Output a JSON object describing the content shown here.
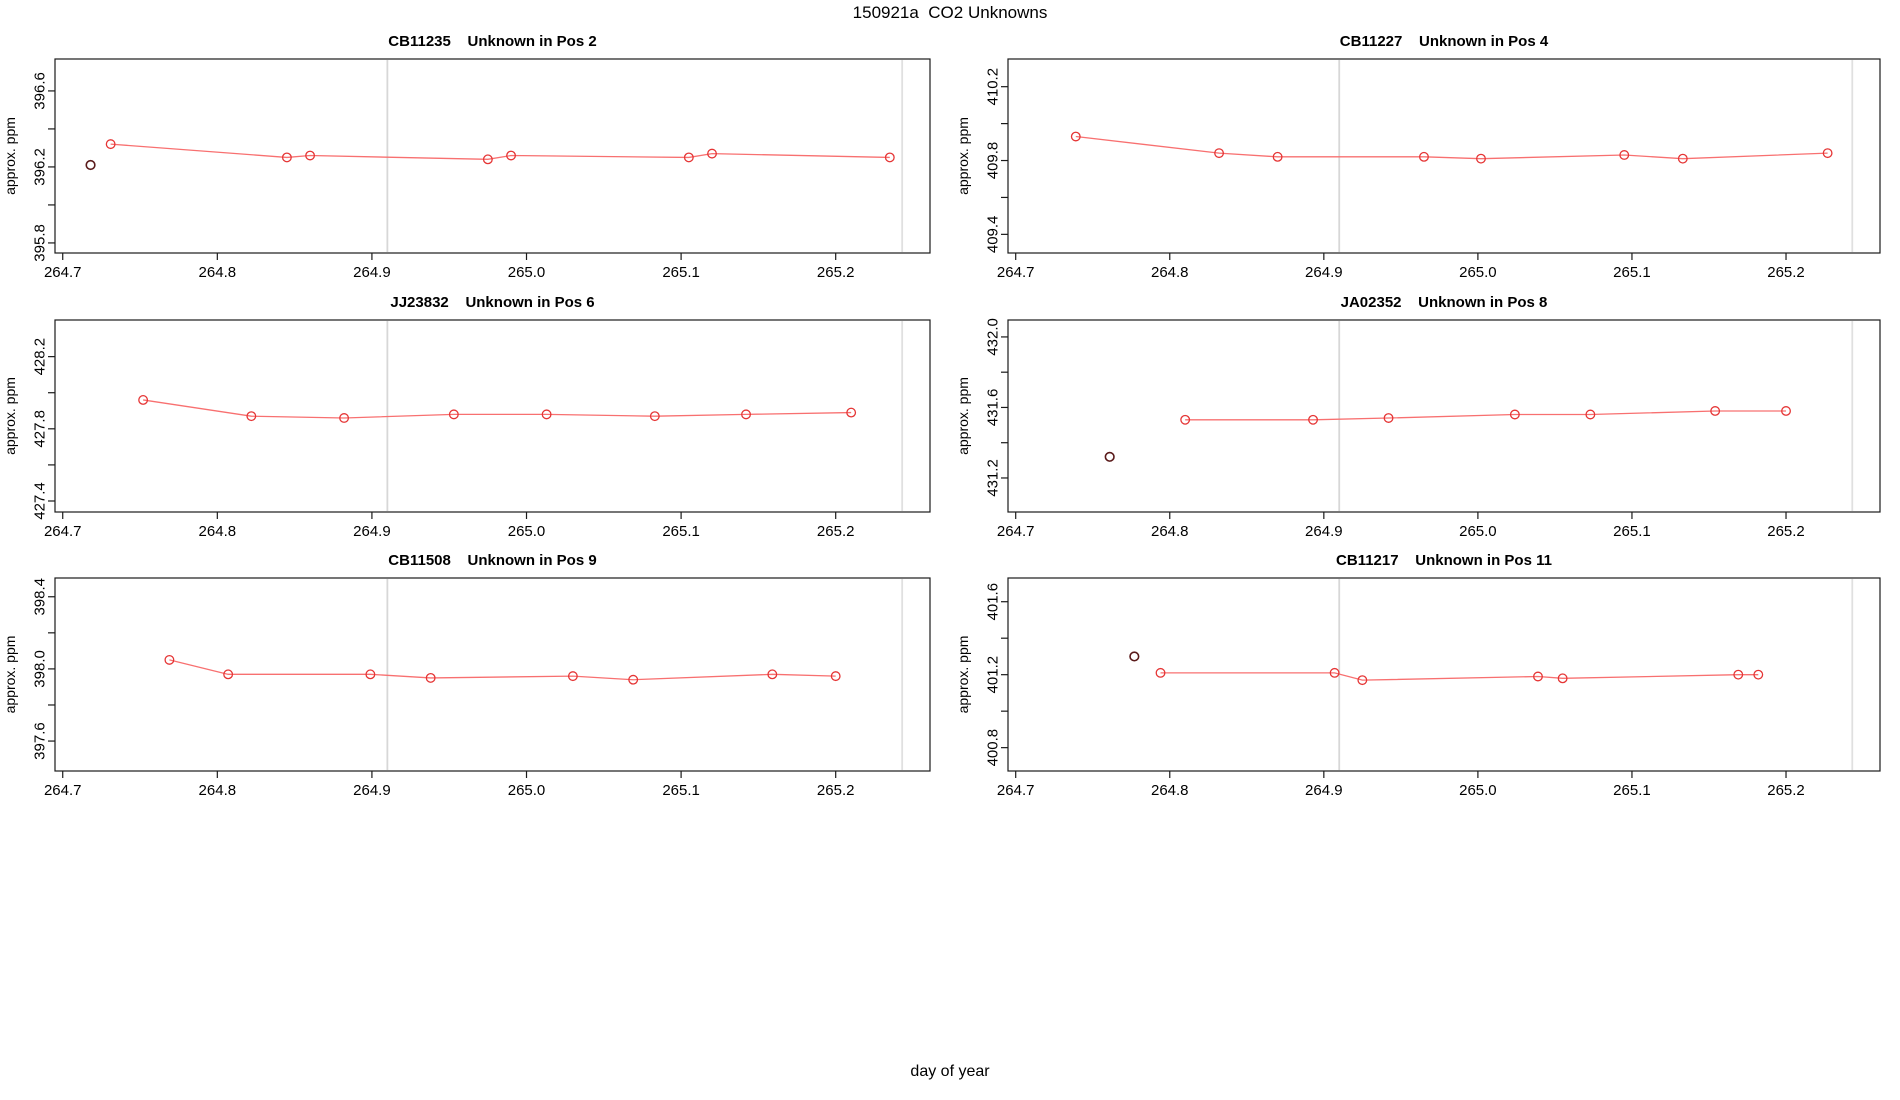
{
  "chart_data": {
    "type": "line",
    "title": "150921a  CO2 Unknowns",
    "xlabel": "day of year",
    "ylabel": "approx. ppm",
    "xlim": [
      264.695,
      265.261
    ],
    "x_ticks": [
      {
        "v": 264.7,
        "label": "264.7"
      },
      {
        "v": 264.8,
        "label": "264.8"
      },
      {
        "v": 264.9,
        "label": "264.9"
      },
      {
        "v": 265.0,
        "label": "265.0"
      },
      {
        "v": 265.1,
        "label": "265.1"
      },
      {
        "v": 265.2,
        "label": "265.2"
      }
    ],
    "vlines": [
      {
        "x": 264.91,
        "color": "#d7d7d7"
      },
      {
        "x": 265.243,
        "color": "#e0e0e0"
      }
    ],
    "colors": {
      "series_line": "#f87070",
      "marker": "#e53535",
      "outlier": "#5a1a1a",
      "axis": "#1a1a1a"
    },
    "panels": [
      {
        "sample_id": "CB11235",
        "position": "Pos 2",
        "title": "CB11235    Unknown in Pos 2",
        "ylim": [
          395.747,
          396.768
        ],
        "y_ticks": [
          {
            "v": 395.8,
            "label": "395.8"
          },
          {
            "v": 396.0
          },
          {
            "v": 396.2,
            "label": "396.2"
          },
          {
            "v": 396.4
          },
          {
            "v": 396.6,
            "label": "396.6"
          }
        ],
        "x": [
          264.731,
          264.845,
          264.86,
          264.975,
          264.99,
          265.105,
          265.12,
          265.235
        ],
        "y": [
          396.32,
          396.25,
          396.26,
          396.24,
          396.26,
          396.25,
          396.27,
          396.25
        ],
        "outlier": {
          "x": 264.718,
          "y": 396.21
        }
      },
      {
        "sample_id": "CB11227",
        "position": "Pos 4",
        "title": "CB11227    Unknown in Pos 4",
        "ylim": [
          409.299,
          410.35
        ],
        "y_ticks": [
          {
            "v": 409.4,
            "label": "409.4"
          },
          {
            "v": 409.6
          },
          {
            "v": 409.8,
            "label": "409.8"
          },
          {
            "v": 410.0
          },
          {
            "v": 410.2,
            "label": "410.2"
          }
        ],
        "x": [
          264.739,
          264.832,
          264.87,
          264.965,
          265.002,
          265.095,
          265.133,
          265.227
        ],
        "y": [
          409.93,
          409.84,
          409.82,
          409.82,
          409.81,
          409.83,
          409.81,
          409.84
        ],
        "outlier": null
      },
      {
        "sample_id": "JJ23832",
        "position": "Pos 6",
        "title": "JJ23832    Unknown in Pos 6",
        "ylim": [
          427.339,
          428.403
        ],
        "y_ticks": [
          {
            "v": 427.4,
            "label": "427.4"
          },
          {
            "v": 427.6
          },
          {
            "v": 427.8,
            "label": "427.8"
          },
          {
            "v": 428.0
          },
          {
            "v": 428.2,
            "label": "428.2"
          }
        ],
        "x": [
          264.752,
          264.822,
          264.882,
          264.953,
          265.013,
          265.083,
          265.142,
          265.21
        ],
        "y": [
          427.96,
          427.87,
          427.86,
          427.88,
          427.88,
          427.87,
          427.88,
          427.89
        ],
        "outlier": null
      },
      {
        "sample_id": "JA02352",
        "position": "Pos 8",
        "title": "JA02352    Unknown in Pos 8",
        "ylim": [
          431.007,
          432.096
        ],
        "y_ticks": [
          {
            "v": 431.2,
            "label": "431.2"
          },
          {
            "v": 431.4
          },
          {
            "v": 431.6,
            "label": "431.6"
          },
          {
            "v": 431.8
          },
          {
            "v": 432.0,
            "label": "432.0"
          }
        ],
        "x": [
          264.81,
          264.893,
          264.942,
          265.024,
          265.073,
          265.154,
          265.2
        ],
        "y": [
          431.53,
          431.53,
          431.54,
          431.56,
          431.56,
          431.58,
          431.58
        ],
        "outlier": {
          "x": 264.761,
          "y": 431.32
        }
      },
      {
        "sample_id": "CB11508",
        "position": "Pos 9",
        "title": "CB11508    Unknown in Pos 9",
        "ylim": [
          397.434,
          398.504
        ],
        "y_ticks": [
          {
            "v": 397.6,
            "label": "397.6"
          },
          {
            "v": 397.8
          },
          {
            "v": 398.0,
            "label": "398.0"
          },
          {
            "v": 398.2
          },
          {
            "v": 398.4,
            "label": "398.4"
          }
        ],
        "x": [
          264.769,
          264.807,
          264.899,
          264.938,
          265.03,
          265.069,
          265.159,
          265.2
        ],
        "y": [
          398.05,
          397.97,
          397.97,
          397.95,
          397.96,
          397.94,
          397.97,
          397.96
        ],
        "outlier": null
      },
      {
        "sample_id": "CB11217",
        "position": "Pos 11",
        "title": "CB11217    Unknown in Pos 11",
        "ylim": [
          400.672,
          401.73
        ],
        "y_ticks": [
          {
            "v": 400.8,
            "label": "400.8"
          },
          {
            "v": 401.0
          },
          {
            "v": 401.2,
            "label": "401.2"
          },
          {
            "v": 401.4
          },
          {
            "v": 401.6,
            "label": "401.6"
          }
        ],
        "x": [
          264.794,
          264.907,
          264.925,
          265.039,
          265.055,
          265.169,
          265.182
        ],
        "y": [
          401.21,
          401.21,
          401.17,
          401.19,
          401.18,
          401.2,
          401.2
        ],
        "outlier": {
          "x": 264.777,
          "y": 401.3
        }
      }
    ]
  }
}
